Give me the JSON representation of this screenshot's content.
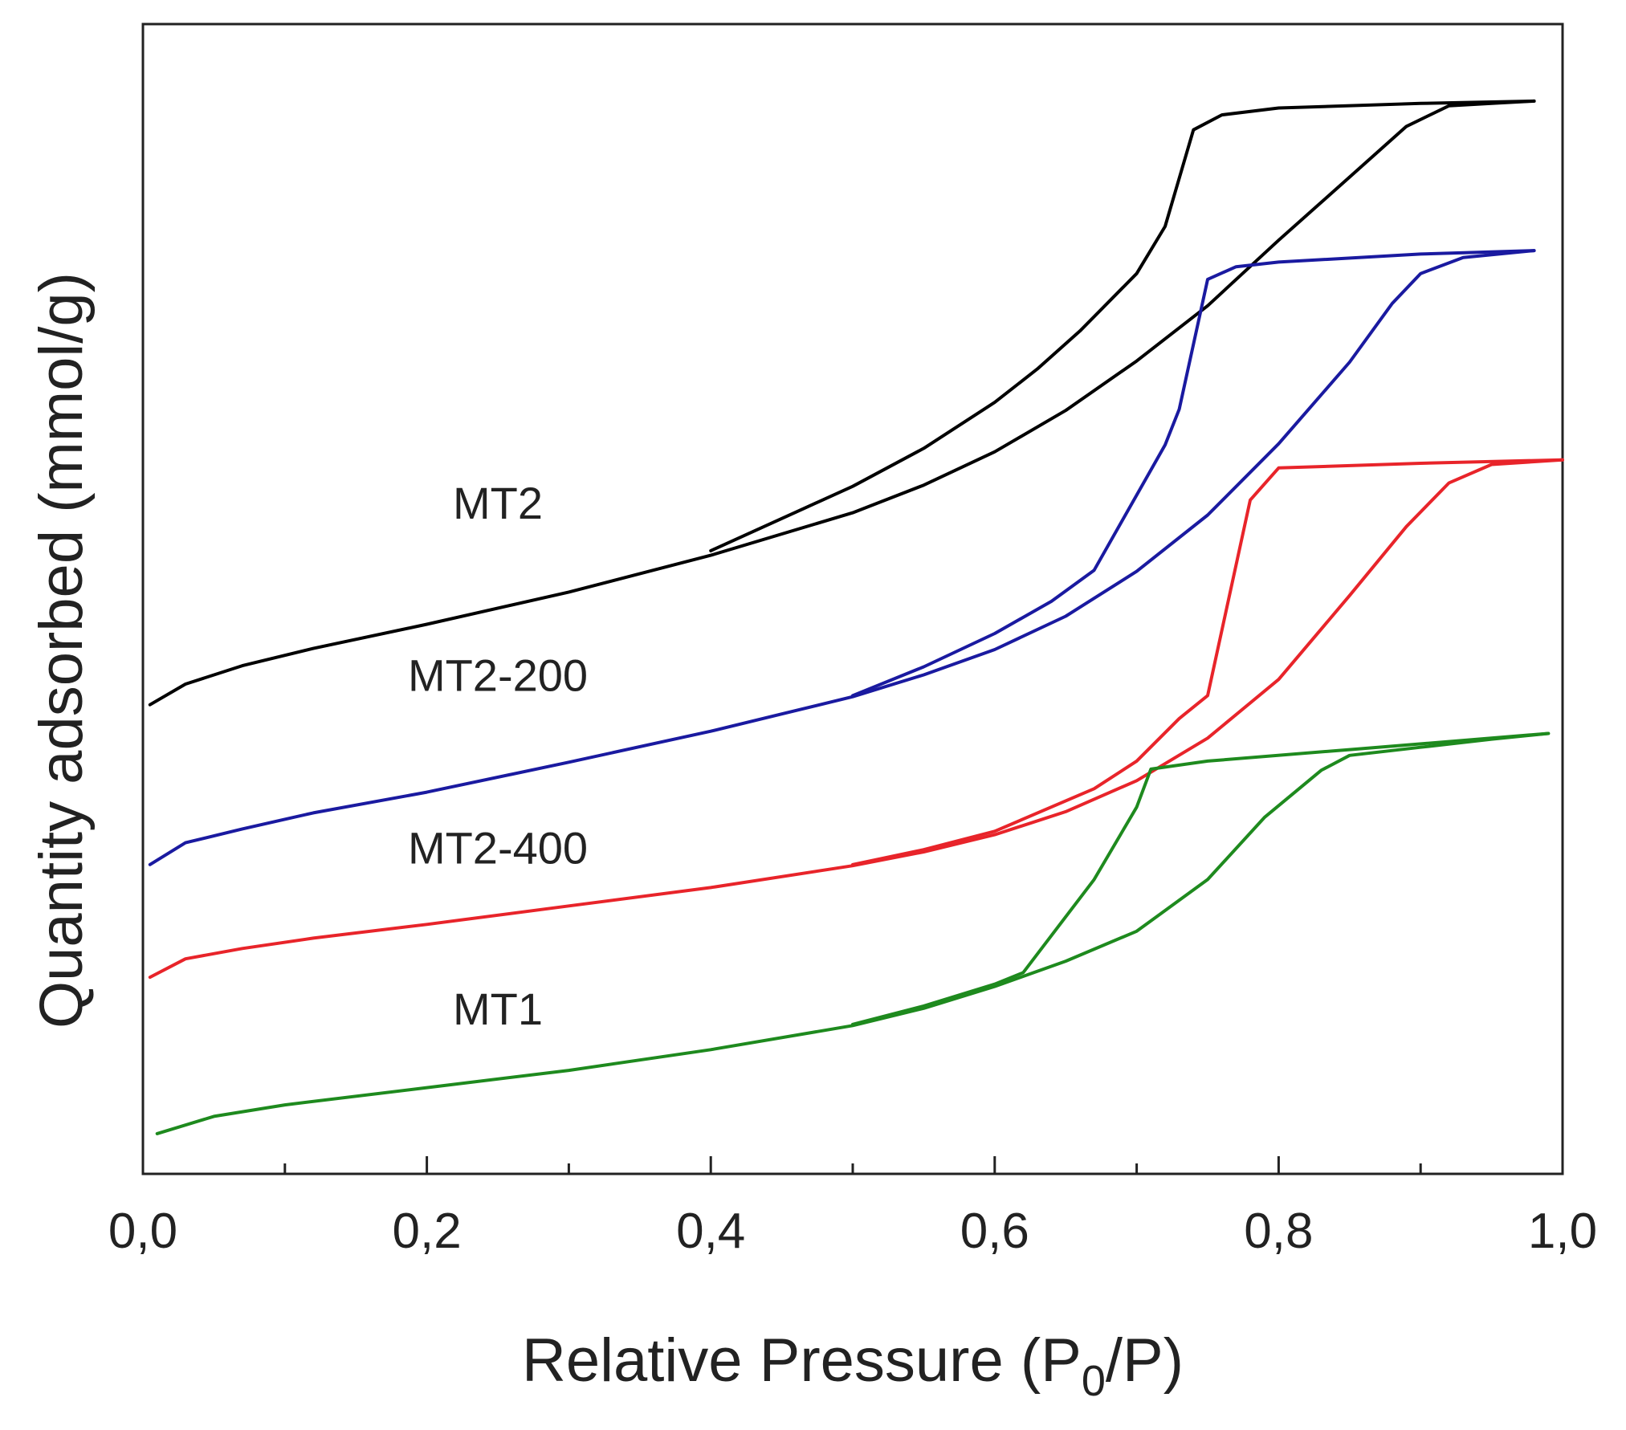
{
  "chart_data": {
    "type": "line",
    "title": "",
    "xlabel_main": "Relative Pressure (P",
    "xlabel_sub": "0",
    "xlabel_end": "/P)",
    "ylabel": "Quantity adsorbed (mmol/g)",
    "xlim": [
      0.0,
      1.0
    ],
    "ylim": [
      0,
      100
    ],
    "x_ticks": [
      "0,0",
      "0,2",
      "0,4",
      "0,6",
      "0,8",
      "1,0"
    ],
    "y_ticks_shown": false,
    "grid": false,
    "series": [
      {
        "name": "MT2",
        "color": "#000000",
        "adsorption": [
          [
            0.005,
            40.8
          ],
          [
            0.03,
            42.6
          ],
          [
            0.07,
            44.2
          ],
          [
            0.12,
            45.7
          ],
          [
            0.2,
            47.8
          ],
          [
            0.3,
            50.6
          ],
          [
            0.4,
            53.8
          ],
          [
            0.5,
            57.5
          ],
          [
            0.55,
            59.9
          ],
          [
            0.6,
            62.8
          ],
          [
            0.65,
            66.4
          ],
          [
            0.7,
            70.7
          ],
          [
            0.75,
            75.5
          ],
          [
            0.8,
            81.2
          ],
          [
            0.85,
            86.7
          ],
          [
            0.89,
            91.1
          ],
          [
            0.92,
            92.9
          ],
          [
            0.95,
            93.1
          ],
          [
            0.98,
            93.3
          ]
        ],
        "desorption": [
          [
            0.98,
            93.3
          ],
          [
            0.9,
            93.1
          ],
          [
            0.8,
            92.7
          ],
          [
            0.76,
            92.1
          ],
          [
            0.74,
            90.8
          ],
          [
            0.72,
            82.4
          ],
          [
            0.7,
            78.3
          ],
          [
            0.66,
            73.3
          ],
          [
            0.63,
            70.0
          ],
          [
            0.6,
            67.1
          ],
          [
            0.55,
            63.1
          ],
          [
            0.5,
            59.8
          ],
          [
            0.4,
            54.2
          ]
        ]
      },
      {
        "name": "MT2-200",
        "color": "#1a1aa0",
        "adsorption": [
          [
            0.005,
            26.9
          ],
          [
            0.03,
            28.8
          ],
          [
            0.07,
            30.0
          ],
          [
            0.12,
            31.4
          ],
          [
            0.2,
            33.2
          ],
          [
            0.3,
            35.8
          ],
          [
            0.4,
            38.5
          ],
          [
            0.5,
            41.5
          ],
          [
            0.55,
            43.4
          ],
          [
            0.6,
            45.6
          ],
          [
            0.65,
            48.5
          ],
          [
            0.7,
            52.4
          ],
          [
            0.75,
            57.3
          ],
          [
            0.8,
            63.5
          ],
          [
            0.85,
            70.6
          ],
          [
            0.88,
            75.7
          ],
          [
            0.9,
            78.3
          ],
          [
            0.93,
            79.7
          ],
          [
            0.98,
            80.3
          ]
        ],
        "desorption": [
          [
            0.98,
            80.3
          ],
          [
            0.9,
            80.0
          ],
          [
            0.8,
            79.3
          ],
          [
            0.77,
            78.9
          ],
          [
            0.75,
            77.8
          ],
          [
            0.73,
            66.5
          ],
          [
            0.72,
            63.4
          ],
          [
            0.67,
            52.5
          ],
          [
            0.64,
            49.8
          ],
          [
            0.6,
            47.0
          ],
          [
            0.55,
            44.1
          ],
          [
            0.5,
            41.6
          ]
        ]
      },
      {
        "name": "MT2-400",
        "color": "#e8242a",
        "adsorption": [
          [
            0.005,
            17.1
          ],
          [
            0.03,
            18.7
          ],
          [
            0.07,
            19.6
          ],
          [
            0.12,
            20.5
          ],
          [
            0.2,
            21.7
          ],
          [
            0.3,
            23.3
          ],
          [
            0.4,
            24.9
          ],
          [
            0.5,
            26.8
          ],
          [
            0.55,
            28.0
          ],
          [
            0.6,
            29.5
          ],
          [
            0.65,
            31.5
          ],
          [
            0.7,
            34.2
          ],
          [
            0.75,
            37.9
          ],
          [
            0.8,
            43.0
          ],
          [
            0.85,
            50.3
          ],
          [
            0.89,
            56.3
          ],
          [
            0.92,
            60.1
          ],
          [
            0.95,
            61.7
          ],
          [
            1.0,
            62.1
          ]
        ],
        "desorption": [
          [
            1.0,
            62.1
          ],
          [
            0.9,
            61.8
          ],
          [
            0.8,
            61.4
          ],
          [
            0.78,
            58.6
          ],
          [
            0.75,
            41.6
          ],
          [
            0.73,
            39.6
          ],
          [
            0.7,
            35.9
          ],
          [
            0.67,
            33.5
          ],
          [
            0.6,
            29.8
          ],
          [
            0.55,
            28.2
          ],
          [
            0.5,
            26.9
          ]
        ]
      },
      {
        "name": "MT1",
        "color": "#1e8a1e",
        "adsorption": [
          [
            0.01,
            3.5
          ],
          [
            0.05,
            5.0
          ],
          [
            0.1,
            6.0
          ],
          [
            0.2,
            7.5
          ],
          [
            0.3,
            9.0
          ],
          [
            0.4,
            10.8
          ],
          [
            0.5,
            12.9
          ],
          [
            0.55,
            14.4
          ],
          [
            0.6,
            16.3
          ],
          [
            0.65,
            18.5
          ],
          [
            0.7,
            21.1
          ],
          [
            0.75,
            25.6
          ],
          [
            0.79,
            31.0
          ],
          [
            0.83,
            35.1
          ],
          [
            0.85,
            36.4
          ],
          [
            0.9,
            37.1
          ],
          [
            0.95,
            37.8
          ],
          [
            0.99,
            38.3
          ]
        ],
        "desorption": [
          [
            0.99,
            38.3
          ],
          [
            0.85,
            36.9
          ],
          [
            0.75,
            35.9
          ],
          [
            0.71,
            35.2
          ],
          [
            0.7,
            31.9
          ],
          [
            0.67,
            25.6
          ],
          [
            0.62,
            17.5
          ],
          [
            0.6,
            16.5
          ],
          [
            0.55,
            14.6
          ],
          [
            0.5,
            13.0
          ]
        ]
      }
    ],
    "annotations": [
      {
        "text": "MT2",
        "series": "MT2",
        "at": [
          0.25,
          57.0
        ]
      },
      {
        "text": "MT2-200",
        "series": "MT2-200",
        "at": [
          0.25,
          42.0
        ]
      },
      {
        "text": "MT2-400",
        "series": "MT2-400",
        "at": [
          0.25,
          27.0
        ]
      },
      {
        "text": "MT1",
        "series": "MT1",
        "at": [
          0.25,
          13.0
        ]
      }
    ]
  }
}
